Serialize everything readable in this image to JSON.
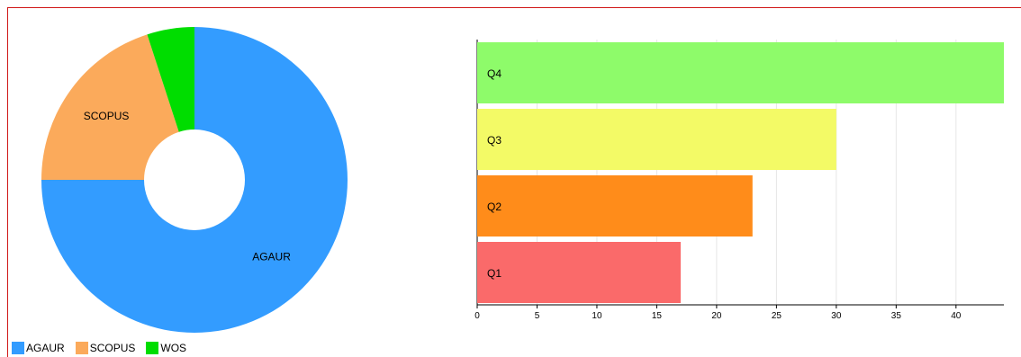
{
  "chart_data": [
    {
      "type": "pie",
      "style": "donut",
      "categories": [
        "AGAUR",
        "SCOPUS",
        "WOS"
      ],
      "values": [
        75,
        20,
        5
      ],
      "colors": [
        "#339cff",
        "#fbaa5b",
        "#00dd00"
      ],
      "legend": [
        "AGAUR",
        "SCOPUS",
        "WOS"
      ],
      "legend_position": "bottom-left"
    },
    {
      "type": "bar",
      "orientation": "horizontal",
      "categories": [
        "Q4",
        "Q3",
        "Q2",
        "Q1"
      ],
      "values": [
        44,
        30,
        23,
        17
      ],
      "colors": [
        "#8efb6a",
        "#f3fa66",
        "#ff8c1a",
        "#fa6a6a"
      ],
      "xlim": [
        0,
        44
      ],
      "xticks": [
        0,
        5,
        10,
        15,
        20,
        25,
        30,
        35,
        40
      ],
      "grid": true
    }
  ]
}
